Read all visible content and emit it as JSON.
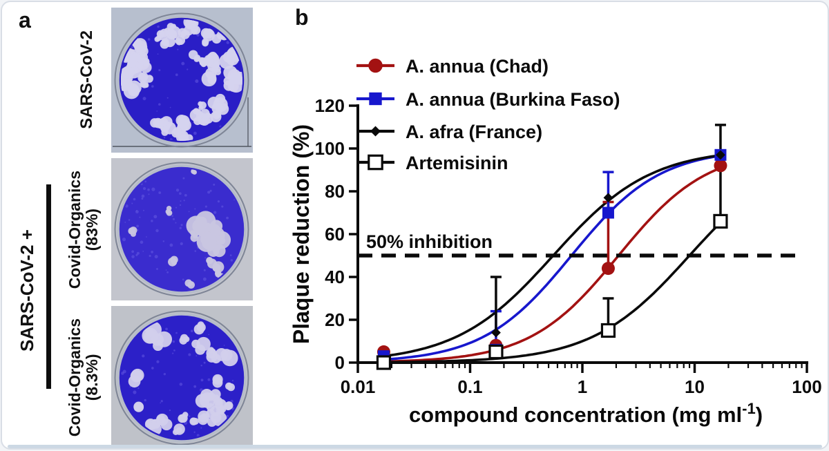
{
  "figure": {
    "panel_a_label": "a",
    "panel_b_label": "b"
  },
  "panel_a": {
    "group_label": "SARS-CoV-2 +",
    "rows": [
      {
        "label_lines": [
          "SARS-CoV-2"
        ],
        "dish": {
          "bg": "#b7bfce",
          "plate": "#2a1ec6",
          "plaque_color": "#d5d3ee",
          "plaques": 55,
          "seed": 7,
          "speckles": 40,
          "big_patch": false
        }
      },
      {
        "label_lines": [
          "Covid-Organics",
          "(83%)"
        ],
        "dish": {
          "bg": "#c3c5cd",
          "plate": "#3a2cce",
          "plaque_color": "#c9c6e0",
          "plaques": 5,
          "seed": 11,
          "speckles": 90,
          "big_patch": true
        }
      },
      {
        "label_lines": [
          "Covid-Organics",
          "(8.3%)"
        ],
        "dish": {
          "bg": "#bfc2c9",
          "plate": "#2c20c8",
          "plaque_color": "#d2cfec",
          "plaques": 26,
          "seed": 23,
          "speckles": 50,
          "big_patch": false
        }
      }
    ]
  },
  "chart_data": {
    "type": "line",
    "title": "",
    "ylabel": "Plaque reduction (%)",
    "xlabel_parts": {
      "main": "compound concentration (mg ml",
      "sup": "-1",
      "end": ")"
    },
    "x_scale": "log",
    "xlim": [
      0.01,
      100
    ],
    "ylim": [
      0,
      120
    ],
    "y_ticks": [
      0,
      20,
      40,
      60,
      80,
      100,
      120
    ],
    "x_ticks": [
      0.01,
      0.1,
      1,
      10,
      100
    ],
    "x_tick_labels": [
      "0.01",
      "0.1",
      "1",
      "10",
      "100"
    ],
    "grid": false,
    "legend_position": "top-left",
    "annotation": {
      "text": "50% inhibition",
      "y": 50,
      "style": "dashed"
    },
    "x": [
      0.017,
      0.17,
      1.7,
      17
    ],
    "series": [
      {
        "name": "A. annua (Chad)",
        "color": "#a31212",
        "marker": "circle",
        "filled": true,
        "values": [
          5,
          8,
          44,
          92
        ],
        "err_plus": [
          0,
          0,
          31,
          0
        ],
        "fit": {
          "top": 100,
          "ec50": 2.1,
          "hill": 1.1
        }
      },
      {
        "name": "A. annua (Burkina Faso)",
        "color": "#1717cd",
        "marker": "square",
        "filled": true,
        "values": [
          3,
          6,
          70,
          97
        ],
        "err_plus": [
          0,
          18,
          19,
          0
        ],
        "fit": {
          "top": 100,
          "ec50": 0.8,
          "hill": 1.1
        }
      },
      {
        "name": "A. afra (France)",
        "color": "#0a0a0a",
        "marker": "diamond",
        "filled": true,
        "values": [
          1,
          14,
          77,
          97
        ],
        "err_plus": [
          0,
          26,
          0,
          0
        ],
        "fit": {
          "top": 100,
          "ec50": 0.55,
          "hill": 1.0
        }
      },
      {
        "name": "Artemisinin",
        "color": "#0a0a0a",
        "marker": "square",
        "filled": false,
        "values": [
          0,
          5,
          15,
          66
        ],
        "err_plus": [
          0,
          0,
          15,
          45
        ],
        "fit": {
          "top": 100,
          "ec50": 9,
          "hill": 1.0
        }
      }
    ]
  }
}
